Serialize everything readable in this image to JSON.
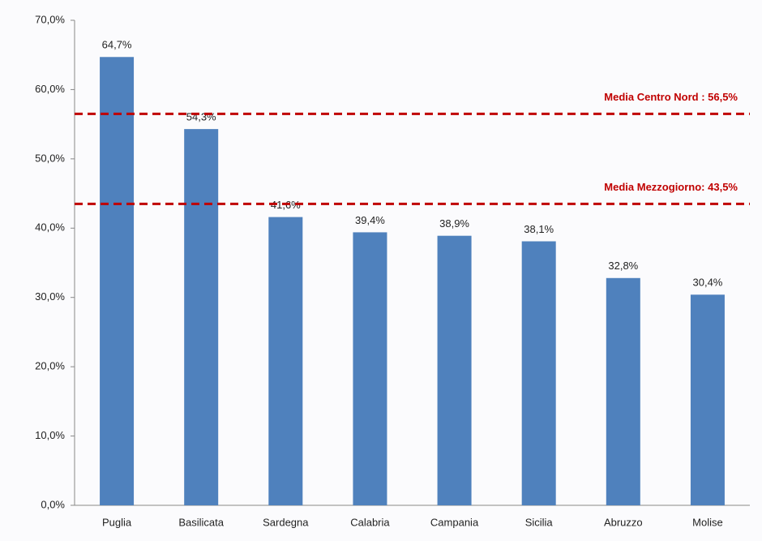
{
  "chart_data": {
    "type": "bar",
    "categories": [
      "Puglia",
      "Basilicata",
      "Sardegna",
      "Calabria",
      "Campania",
      "Sicilia",
      "Abruzzo",
      "Molise"
    ],
    "values": [
      64.7,
      54.3,
      41.6,
      39.4,
      38.9,
      38.1,
      32.8,
      30.4
    ],
    "value_labels": [
      "64,7%",
      "54,3%",
      "41,6%",
      "39,4%",
      "38,9%",
      "38,1%",
      "32,8%",
      "30,4%"
    ],
    "color": "#4f81bd",
    "ylim": [
      0,
      70
    ],
    "yticks": [
      {
        "value": 0,
        "label": "0,0%"
      },
      {
        "value": 10,
        "label": "10,0%"
      },
      {
        "value": 20,
        "label": "20,0%"
      },
      {
        "value": 30,
        "label": "30,0%"
      },
      {
        "value": 40,
        "label": "40,0%"
      },
      {
        "value": 50,
        "label": "50,0%"
      },
      {
        "value": 60,
        "label": "60,0%"
      },
      {
        "value": 70,
        "label": "70,0%"
      }
    ],
    "grid": false,
    "reference_lines": [
      {
        "label": "Media Centro Nord : 56,5%",
        "value": 56.5,
        "color": "#c00000"
      },
      {
        "label": "Media Mezzogiorno: 43,5%",
        "value": 43.5,
        "color": "#c00000"
      }
    ]
  }
}
